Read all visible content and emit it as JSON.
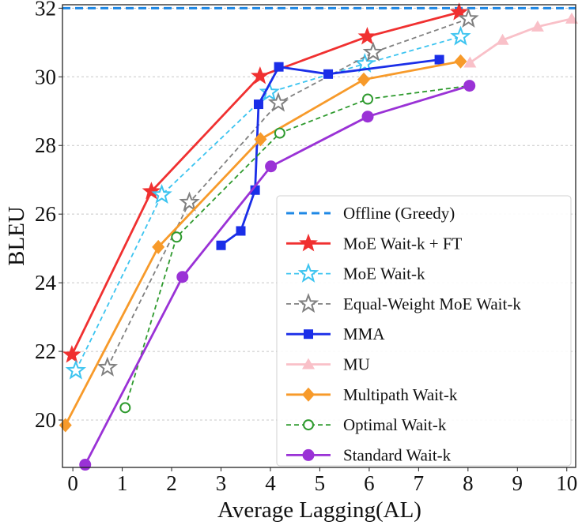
{
  "chart_data": {
    "type": "line",
    "title": "",
    "xlabel": "Average Lagging(AL)",
    "ylabel": "BLEU",
    "xlim": [
      -0.21,
      10.18
    ],
    "ylim": [
      18.62,
      32.1
    ],
    "xticks": [
      0,
      1,
      2,
      3,
      4,
      5,
      6,
      7,
      8,
      9,
      10
    ],
    "yticks": [
      20,
      22,
      24,
      26,
      28,
      30,
      32
    ],
    "grid": "horizontal dotted",
    "legend_position": "bottom-right",
    "series": [
      {
        "name": "Offline (Greedy)",
        "color": "#1f88e5",
        "style": "dashed",
        "marker": "none",
        "hline": 32.0,
        "x": [],
        "y": []
      },
      {
        "name": "MoE Wait-k + FT",
        "color": "#f03030",
        "style": "solid",
        "marker": "star-filled",
        "x": [
          -0.02,
          1.59,
          3.79,
          5.96,
          7.82
        ],
        "y": [
          21.9,
          26.66,
          30.02,
          31.17,
          31.88
        ]
      },
      {
        "name": "MoE Wait-k",
        "color": "#3cc4f0",
        "style": "dashed",
        "marker": "star-open",
        "x": [
          0.06,
          1.8,
          3.98,
          5.91,
          7.85
        ],
        "y": [
          21.44,
          26.56,
          29.55,
          30.38,
          31.17
        ]
      },
      {
        "name": "Equal-Weight MoE Wait-k",
        "color": "#808080",
        "style": "dashed",
        "marker": "star-open",
        "x": [
          0.7,
          2.36,
          4.16,
          6.08,
          8.01
        ],
        "y": [
          21.53,
          26.34,
          29.24,
          30.71,
          31.69
        ]
      },
      {
        "name": "MMA",
        "color": "#1a2ee8",
        "style": "solid",
        "marker": "square",
        "x": [
          3.0,
          3.4,
          3.69,
          3.76,
          4.17,
          5.17,
          7.42
        ],
        "y": [
          25.09,
          25.51,
          26.7,
          29.2,
          30.29,
          30.08,
          30.5
        ]
      },
      {
        "name": "MU",
        "color": "#f9c0c8",
        "style": "solid",
        "marker": "triangle",
        "x": [
          8.04,
          8.7,
          9.41,
          10.1
        ],
        "y": [
          30.41,
          31.07,
          31.46,
          31.69
        ]
      },
      {
        "name": "Multipath Wait-k",
        "color": "#f79a2a",
        "style": "solid",
        "marker": "diamond",
        "x": [
          -0.15,
          1.73,
          3.8,
          5.89,
          7.85
        ],
        "y": [
          19.85,
          25.04,
          28.18,
          29.92,
          30.45
        ]
      },
      {
        "name": "Optimal Wait-k",
        "color": "#2e9a2e",
        "style": "dashed",
        "marker": "circle-open",
        "x": [
          1.06,
          2.1,
          4.19,
          5.97,
          8.03
        ],
        "y": [
          20.36,
          25.33,
          28.36,
          29.35,
          29.74
        ]
      },
      {
        "name": "Standard Wait-k",
        "color": "#9a32d6",
        "style": "solid",
        "marker": "circle",
        "x": [
          0.25,
          2.22,
          4.01,
          5.97,
          8.03
        ],
        "y": [
          18.7,
          24.17,
          27.39,
          28.84,
          29.74
        ]
      }
    ]
  }
}
